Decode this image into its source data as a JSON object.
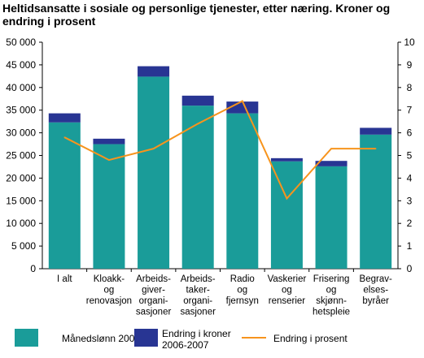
{
  "chart_data": {
    "type": "bar",
    "title": "Heltidsansatte i sosiale og personlige tjenester, etter næring. Kroner og endring i prosent",
    "categories": [
      [
        "I alt"
      ],
      [
        "Kloakk-",
        "og",
        "renovasjon"
      ],
      [
        "Arbeids-",
        "giver-",
        "organi-",
        "sasjoner"
      ],
      [
        "Arbeids-",
        "taker-",
        "organi-",
        "sasjoner"
      ],
      [
        "Radio",
        "og",
        "fjernsyn"
      ],
      [
        "Vaskerier",
        "og",
        "renserier"
      ],
      [
        "Frisering",
        "og",
        "skjønn-",
        "hetspleie"
      ],
      [
        "Begrav-",
        "elses-",
        "byråer"
      ]
    ],
    "series": [
      {
        "name": "Månedslønn 2006",
        "type": "bar",
        "axis": "left",
        "color": "#1a9c99",
        "values": [
          32300,
          27500,
          42400,
          36000,
          34300,
          23700,
          22600,
          29600
        ]
      },
      {
        "name": "Endring i kroner 2006-2007",
        "type": "bar",
        "axis": "left",
        "color": "#283593",
        "values": [
          2000,
          1200,
          2300,
          2200,
          2600,
          700,
          1200,
          1500
        ]
      },
      {
        "name": "Endring i prosent",
        "type": "line",
        "axis": "right",
        "color": "#f7941d",
        "values": [
          5.8,
          4.8,
          5.3,
          6.4,
          7.4,
          3.1,
          5.3,
          5.3
        ]
      }
    ],
    "ylim": [
      0,
      50000
    ],
    "y2lim": [
      0,
      10
    ],
    "yticks": [
      "0",
      "5 000",
      "10 000",
      "15 000",
      "20 000",
      "25 000",
      "30 000",
      "35 000",
      "40 000",
      "45 000",
      "50 000"
    ],
    "y2ticks": [
      "0",
      "1",
      "2",
      "3",
      "4",
      "5",
      "6",
      "7",
      "8",
      "9",
      "10"
    ],
    "legend": [
      {
        "label": [
          "Månedslønn 2006"
        ],
        "kind": "box",
        "color": "#1a9c99"
      },
      {
        "label": [
          "Endring i kroner",
          "2006-2007"
        ],
        "kind": "box",
        "color": "#283593"
      },
      {
        "label": [
          "Endring i prosent"
        ],
        "kind": "line",
        "color": "#f7941d"
      }
    ],
    "legend_position": "bottom",
    "grid": false
  }
}
